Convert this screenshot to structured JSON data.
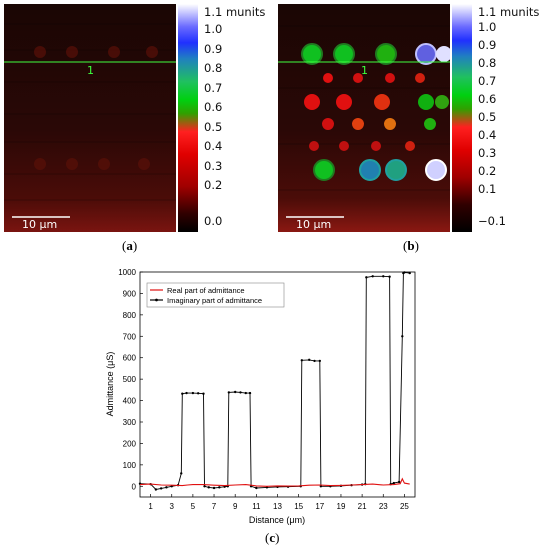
{
  "panel_a": {
    "caption_open": "(",
    "caption_letter": "a",
    "caption_close": ")",
    "scale_bar_label": "10 µm",
    "line_marker": "1",
    "colorbar_labels": [
      "1.1 munits",
      "1.0",
      "0.9",
      "0.8",
      "0.7",
      "0.6",
      "0.5",
      "0.4",
      "0.3",
      "0.2",
      "0.0"
    ],
    "colorbar_values": [
      1.1,
      1.0,
      0.9,
      0.8,
      0.7,
      0.6,
      0.5,
      0.4,
      0.3,
      0.2,
      0.0
    ]
  },
  "panel_b": {
    "caption_open": "(",
    "caption_letter": "b",
    "caption_close": ")",
    "scale_bar_label": "10 µm",
    "line_marker": "1",
    "colorbar_labels": [
      "1.1 munits",
      "1.0",
      "0.9",
      "0.8",
      "0.7",
      "0.6",
      "0.5",
      "0.4",
      "0.3",
      "0.2",
      "0.1",
      "−0.1"
    ],
    "colorbar_values": [
      1.1,
      1.0,
      0.9,
      0.8,
      0.7,
      0.6,
      0.5,
      0.4,
      0.3,
      0.2,
      0.1,
      -0.1
    ]
  },
  "panel_c": {
    "caption_open": "(",
    "caption_letter": "c",
    "caption_close": ")"
  },
  "colors": {
    "real_series": "#e01010",
    "imag_series": "#000000"
  },
  "chart_data": {
    "type": "line",
    "xlabel": "Distance (μm)",
    "ylabel": "Admittance (μS)",
    "xlim": [
      0,
      26
    ],
    "ylim": [
      -50,
      1000
    ],
    "xticks": [
      1,
      3,
      5,
      7,
      9,
      11,
      13,
      15,
      17,
      19,
      21,
      23,
      25
    ],
    "yticks": [
      0,
      100,
      200,
      300,
      400,
      500,
      600,
      700,
      800,
      900,
      1000
    ],
    "legend_position": "top-left",
    "series": [
      {
        "name": "Real part of admittance",
        "x": [
          0,
          1,
          2,
          3,
          4,
          4.5,
          5,
          6,
          7,
          8,
          9,
          10,
          11,
          12,
          13,
          14,
          15,
          16,
          17,
          18,
          19,
          20,
          21,
          22,
          23,
          24,
          24.6,
          24.8,
          25,
          25.5
        ],
        "y": [
          8,
          10,
          6,
          5,
          3,
          6,
          8,
          8,
          5,
          3,
          6,
          8,
          2,
          0,
          2,
          1,
          2,
          5,
          6,
          3,
          4,
          6,
          8,
          10,
          6,
          8,
          12,
          35,
          15,
          10
        ]
      },
      {
        "name": "Imaginary part of admittance",
        "x": [
          0,
          1,
          1.5,
          2,
          2.5,
          3,
          3.6,
          3.9,
          4.0,
          4.4,
          5,
          5.5,
          6.0,
          6.1,
          6.5,
          7,
          7.5,
          8,
          8.3,
          8.4,
          9,
          9.5,
          10,
          10.4,
          10.5,
          11,
          12,
          13,
          14,
          15.2,
          15.3,
          16,
          16.5,
          17.0,
          17.1,
          18,
          19,
          20,
          21,
          21.3,
          21.4,
          22,
          23,
          23.6,
          23.7,
          24,
          24.5,
          24.8,
          24.9,
          25,
          25.5
        ],
        "y": [
          12,
          10,
          -15,
          -10,
          -5,
          0,
          5,
          60,
          432,
          435,
          435,
          434,
          432,
          0,
          -5,
          -8,
          -5,
          -2,
          0,
          438,
          440,
          438,
          435,
          435,
          0,
          -8,
          -5,
          -3,
          -2,
          0,
          588,
          590,
          585,
          585,
          0,
          0,
          2,
          5,
          8,
          10,
          975,
          980,
          980,
          978,
          10,
          15,
          20,
          700,
          995,
          998,
          995
        ]
      }
    ]
  }
}
